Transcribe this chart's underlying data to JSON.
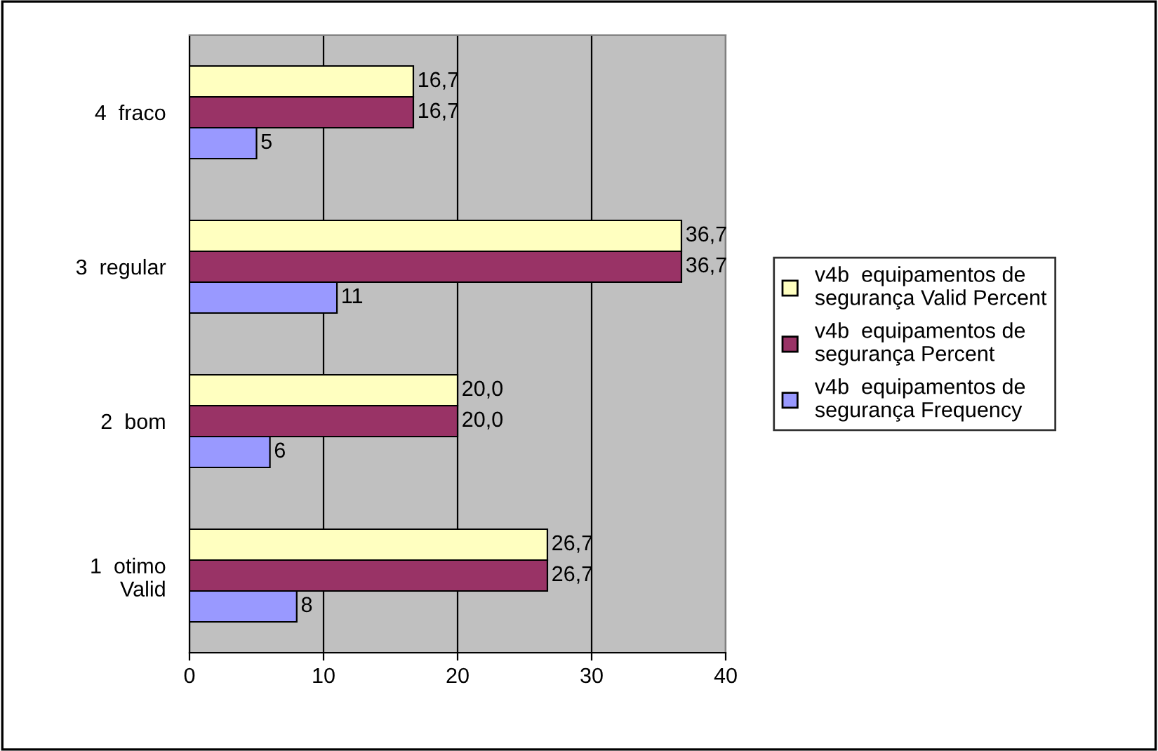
{
  "chart_data": {
    "type": "bar",
    "orientation": "horizontal",
    "categories": [
      "4  fraco",
      "3  regular",
      "2  bom",
      "1  otimo\nValid"
    ],
    "series": [
      {
        "name": "v4b  equipamentos de segurança Valid Percent",
        "color": "#ffffc0",
        "values": [
          16.7,
          36.7,
          20.0,
          26.7
        ],
        "value_labels": [
          "16,7",
          "36,7",
          "20,0",
          "26,7"
        ]
      },
      {
        "name": "v4b  equipamentos de segurança Percent",
        "color": "#993366",
        "values": [
          16.7,
          36.7,
          20.0,
          26.7
        ],
        "value_labels": [
          "16,7",
          "36,7",
          "20,0",
          "26,7"
        ]
      },
      {
        "name": "v4b  equipamentos de segurança Frequency",
        "color": "#9999ff",
        "values": [
          5,
          11,
          6,
          8
        ],
        "value_labels": [
          "5",
          "11",
          "6",
          "8"
        ]
      }
    ],
    "xlim": [
      0,
      40
    ],
    "xticks": [
      0,
      10,
      20,
      30,
      40
    ],
    "grid": "x",
    "legend": "right"
  }
}
